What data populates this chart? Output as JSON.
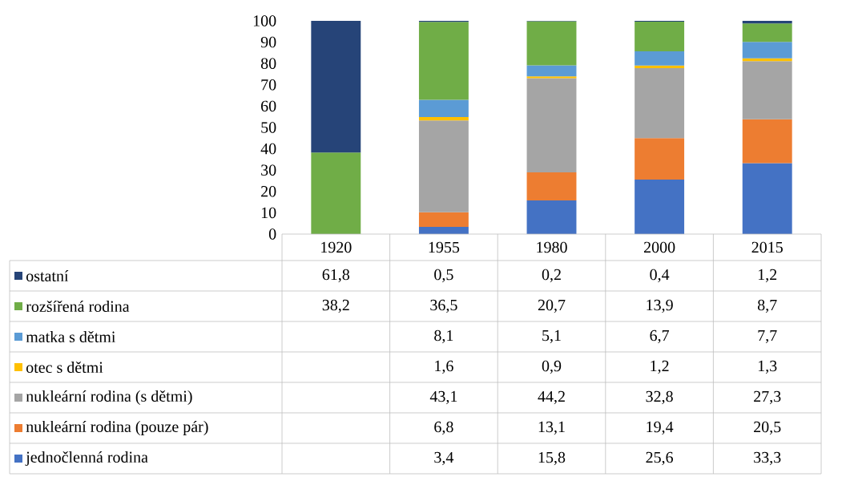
{
  "chart_data": {
    "type": "bar",
    "stacked": true,
    "legend": "bottom",
    "categories": [
      "1920",
      "1955",
      "1980",
      "2000",
      "2015"
    ],
    "ylim": [
      0,
      100
    ],
    "yticks": [
      0,
      10,
      20,
      30,
      40,
      50,
      60,
      70,
      80,
      90,
      100
    ],
    "series": [
      {
        "name": "jednočlenná rodina",
        "color": "#4472c4",
        "values": [
          null,
          3.4,
          15.8,
          25.6,
          33.3
        ],
        "value_labels": [
          null,
          "3,4",
          "15,8",
          "25,6",
          "33,3"
        ]
      },
      {
        "name": "nukleární rodina (pouze pár)",
        "color": "#ed7d31",
        "values": [
          null,
          6.8,
          13.1,
          19.4,
          20.5
        ],
        "value_labels": [
          null,
          "6,8",
          "13,1",
          "19,4",
          "20,5"
        ]
      },
      {
        "name": "nukleární rodina (s dětmi)",
        "color": "#a5a5a5",
        "values": [
          null,
          43.1,
          44.2,
          32.8,
          27.3
        ],
        "value_labels": [
          null,
          "43,1",
          "44,2",
          "32,8",
          "27,3"
        ]
      },
      {
        "name": "otec s dětmi",
        "color": "#ffc000",
        "values": [
          null,
          1.6,
          0.9,
          1.2,
          1.3
        ],
        "value_labels": [
          null,
          "1,6",
          "0,9",
          "1,2",
          "1,3"
        ]
      },
      {
        "name": "matka s dětmi",
        "color": "#5b9bd5",
        "values": [
          null,
          8.1,
          5.1,
          6.7,
          7.7
        ],
        "value_labels": [
          null,
          "8,1",
          "5,1",
          "6,7",
          "7,7"
        ]
      },
      {
        "name": "rozšířená rodina",
        "color": "#70ad47",
        "values": [
          38.2,
          36.5,
          20.7,
          13.9,
          8.7
        ],
        "value_labels": [
          "38,2",
          "36,5",
          "20,7",
          "13,9",
          "8,7"
        ]
      },
      {
        "name": "ostatní",
        "color": "#264478",
        "values": [
          61.8,
          0.5,
          0.2,
          0.4,
          1.2
        ],
        "value_labels": [
          "61,8",
          "0,5",
          "0,2",
          "0,4",
          "1,2"
        ]
      }
    ]
  }
}
